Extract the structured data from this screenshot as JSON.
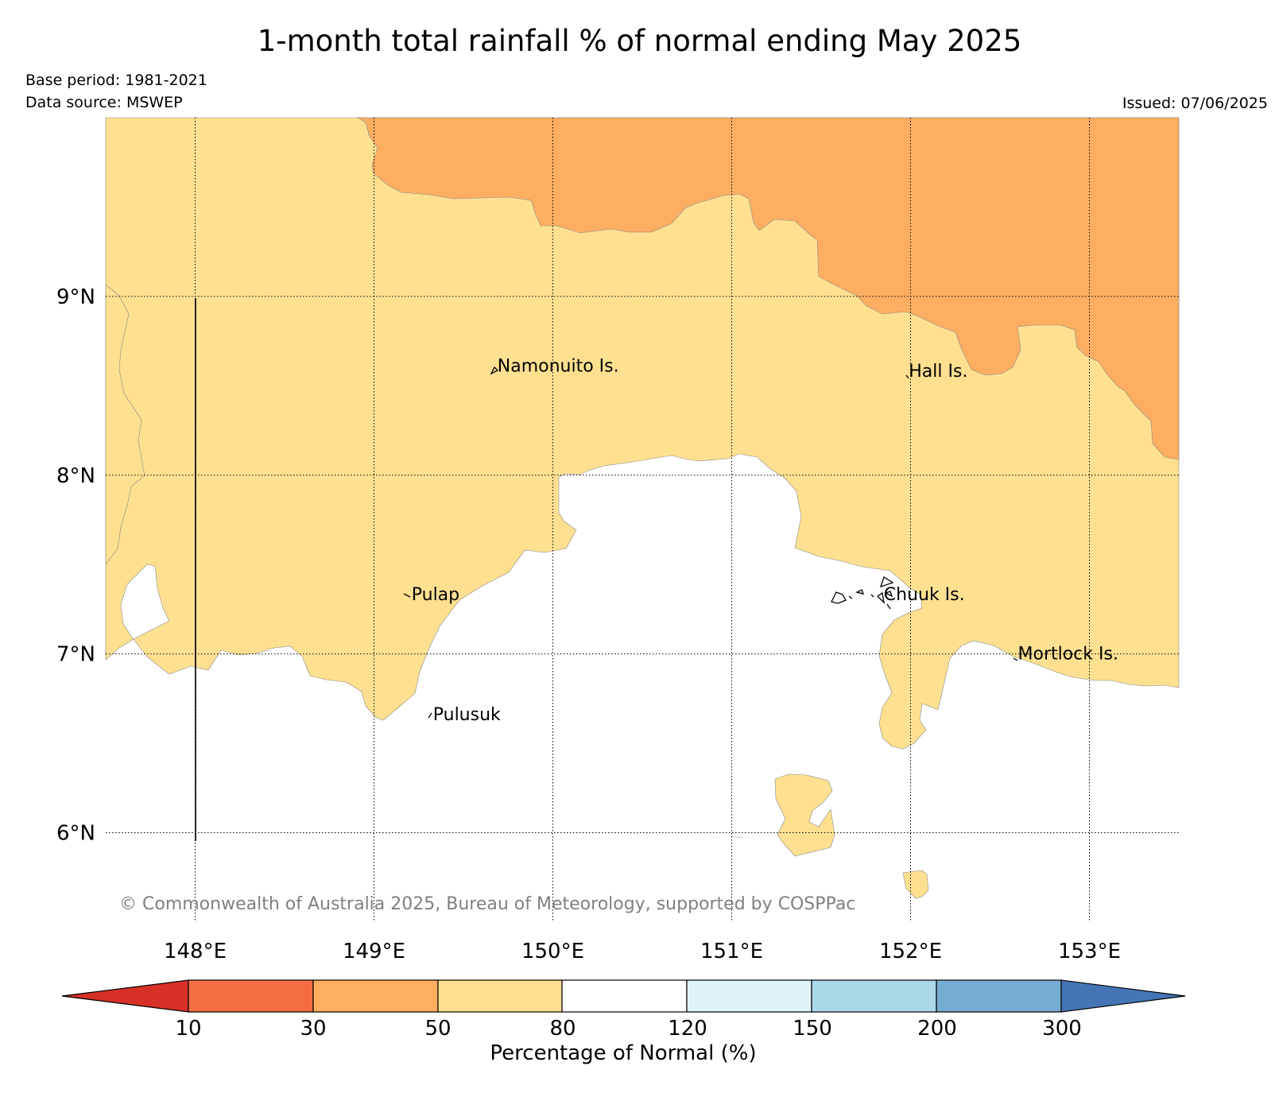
{
  "title": "1-month total rainfall % of normal ending May 2025",
  "base_period": "Base period: 1981-2021",
  "data_source": "Data source: MSWEP",
  "issued": "Issued: 07/06/2025",
  "copyright": "© Commonwealth of Australia 2025, Bureau of Meteorology, supported by COSPPac",
  "map": {
    "lon_range": [
      147.5,
      153.5
    ],
    "lat_range": [
      5.5,
      10.0
    ],
    "lon_ticks": [
      {
        "value": 148,
        "label": "148°E"
      },
      {
        "value": 149,
        "label": "149°E"
      },
      {
        "value": 150,
        "label": "150°E"
      },
      {
        "value": 151,
        "label": "151°E"
      },
      {
        "value": 152,
        "label": "152°E"
      },
      {
        "value": 153,
        "label": "153°E"
      }
    ],
    "lat_ticks": [
      {
        "value": 9,
        "label": "9°N"
      },
      {
        "value": 8,
        "label": "8°N"
      },
      {
        "value": 7,
        "label": "7°N"
      },
      {
        "value": 6,
        "label": "6°N"
      }
    ],
    "grid": "dotted",
    "places": [
      {
        "name": "Namonuito Is.",
        "lon": 149.69,
        "lat": 8.58
      },
      {
        "name": "Hall Is.",
        "lon": 151.99,
        "lat": 8.55
      },
      {
        "name": "Pulap",
        "lon": 149.21,
        "lat": 7.3
      },
      {
        "name": "Chuuk Is.",
        "lon": 151.85,
        "lat": 7.3
      },
      {
        "name": "Mortlock Is.",
        "lon": 152.6,
        "lat": 6.97
      },
      {
        "name": "Pulusuk",
        "lon": 149.33,
        "lat": 6.63
      }
    ]
  },
  "colorbar": {
    "label": "Percentage of Normal (%)",
    "ticks": [
      "10",
      "30",
      "50",
      "80",
      "120",
      "150",
      "200",
      "300"
    ],
    "colors": {
      "below_10": "#d73027",
      "10_30": "#f46d43",
      "30_50": "#fdae61",
      "50_80": "#fee090",
      "80_120": "#ffffff",
      "120_150": "#e0f3f8",
      "150_200": "#abd9e9",
      "200_300": "#74add1",
      "above_300": "#4575b4"
    }
  }
}
